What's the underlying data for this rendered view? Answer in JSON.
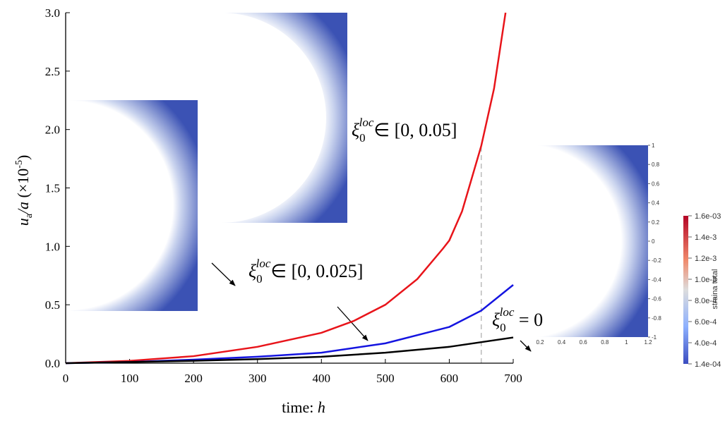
{
  "chart_data": {
    "type": "line",
    "xlabel": {
      "text": "time: ",
      "var": "h"
    },
    "ylabel": {
      "var": "u",
      "sub": "a",
      "mid": "/a",
      "unit": " (×10",
      "sup": "-5",
      "end": ")"
    },
    "xlim": [
      0,
      700
    ],
    "ylim": [
      0,
      3.0
    ],
    "xticks": [
      0,
      100,
      200,
      300,
      400,
      500,
      600,
      700
    ],
    "yticks": [
      {
        "value": 0,
        "label": "0.0"
      },
      0.5,
      {
        "value": 1,
        "label": "1.0"
      },
      1.5,
      {
        "value": 2,
        "label": "2.0"
      },
      2.5,
      {
        "value": 3,
        "label": "3.0"
      }
    ],
    "reference_line_x": 650,
    "series": [
      {
        "color": "#e8141a",
        "label": {
          "symbol": "ξ",
          "sub": "0",
          "sup": "loc",
          "text": "∈ [0, 0.05]"
        },
        "x": [
          0,
          100,
          200,
          300,
          400,
          450,
          500,
          550,
          590,
          600,
          620,
          650,
          670,
          688
        ],
        "values": [
          0,
          0.02,
          0.06,
          0.14,
          0.26,
          0.36,
          0.5,
          0.72,
          0.98,
          1.05,
          1.3,
          1.86,
          2.35,
          3.0
        ]
      },
      {
        "color": "#1414e0",
        "label": {
          "symbol": "ξ",
          "sub": "0",
          "sup": "loc",
          "text": "∈ [0, 0.025]"
        },
        "x": [
          0,
          100,
          200,
          300,
          400,
          500,
          600,
          650,
          700
        ],
        "values": [
          0,
          0.01,
          0.03,
          0.055,
          0.09,
          0.17,
          0.31,
          0.45,
          0.67
        ]
      },
      {
        "color": "#000000",
        "label": {
          "symbol": "ξ",
          "sub": "0",
          "sup": "loc",
          "text": " = 0"
        },
        "x": [
          0,
          100,
          200,
          300,
          400,
          500,
          600,
          650,
          700
        ],
        "values": [
          0,
          0.01,
          0.02,
          0.035,
          0.055,
          0.09,
          0.14,
          0.18,
          0.22
        ]
      }
    ]
  },
  "inset": {
    "yticks": [
      1,
      0.8,
      0.6,
      0.4,
      0.2,
      0,
      -0.2,
      -0.4,
      -0.6,
      -0.8,
      -1
    ],
    "xticks": [
      0.2,
      0.4,
      0.6,
      0.8,
      1,
      1.2
    ],
    "colorbar_labels": [
      "1.6e-03",
      "1.4e-3",
      "1.2e-3",
      "1.0e-3",
      "8.0e-4",
      "6.0e-4",
      "4.0e-4",
      "1.4e-04"
    ],
    "colorbar_title": "straina total"
  }
}
